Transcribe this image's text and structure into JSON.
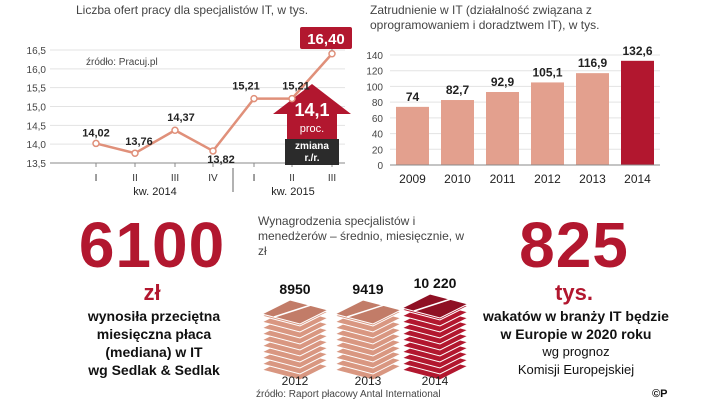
{
  "chart_data": [
    {
      "type": "line",
      "title": "Liczba ofert pracy  dla specjalistów IT, w tys.",
      "source": "źródło: Pracuj.pl",
      "x": [
        "I",
        "II",
        "III",
        "IV",
        "I",
        "II",
        "III"
      ],
      "groups": [
        "kw. 2014",
        "kw. 2015"
      ],
      "values": [
        14.02,
        13.76,
        14.37,
        13.82,
        15.21,
        15.21,
        16.4
      ],
      "value_labels": [
        "14,02",
        "13,76",
        "14,37",
        "13,82",
        "15,21",
        "15,21",
        "16,40"
      ],
      "yticks": [
        "16,5",
        "16,0",
        "15,5",
        "15,0",
        "14,5",
        "14,0",
        "13,5"
      ],
      "ylim": [
        13.5,
        16.5
      ],
      "grid": true,
      "color": "#e0907a",
      "highlight_color": "#b2172f",
      "change": {
        "value": "14,1",
        "unit": "proc.",
        "label": "zmiana r./r."
      }
    },
    {
      "type": "bar",
      "title": "Zatrudnienie w IT (działalność związana z oprogramowaniem i doradztwem IT), w tys.",
      "categories": [
        "2009",
        "2010",
        "2011",
        "2012",
        "2013",
        "2014"
      ],
      "values": [
        74,
        82.7,
        92.9,
        105.1,
        116.9,
        132.6
      ],
      "value_labels": [
        "74",
        "82,7",
        "92,9",
        "105,1",
        "116,9",
        "132,6"
      ],
      "yticks": [
        "140",
        "120",
        "100",
        "80",
        "60",
        "40",
        "20",
        "0"
      ],
      "ylim": [
        0,
        140
      ],
      "grid": true,
      "bar_color": "#e3a08e",
      "highlight_color": "#b2172f"
    },
    {
      "type": "bar",
      "title": "Wynagrodzenia specjalistów i menedżerów – średnio, miesięcznie, w zł",
      "categories": [
        "2012",
        "2013",
        "2014"
      ],
      "values": [
        8950,
        9419,
        10220
      ],
      "value_labels": [
        "8950",
        "9419",
        "10 220"
      ],
      "source": "źródło: Raport płacowy Antal International"
    }
  ],
  "left_stat": {
    "value": "6100",
    "unit": "zł",
    "line1": "wynosiła przeciętna",
    "line2": "miesięczna płaca",
    "line3": "(mediana) w IT",
    "line4": "wg Sedlak & Sedlak"
  },
  "right_stat": {
    "value": "825",
    "unit": "tys.",
    "line1": "wakatów w branży IT będzie",
    "line2": "w Europie w 2020 roku",
    "line3": "wg prognoz",
    "line4": "Komisji Europejskiej"
  },
  "copyright": "©P"
}
